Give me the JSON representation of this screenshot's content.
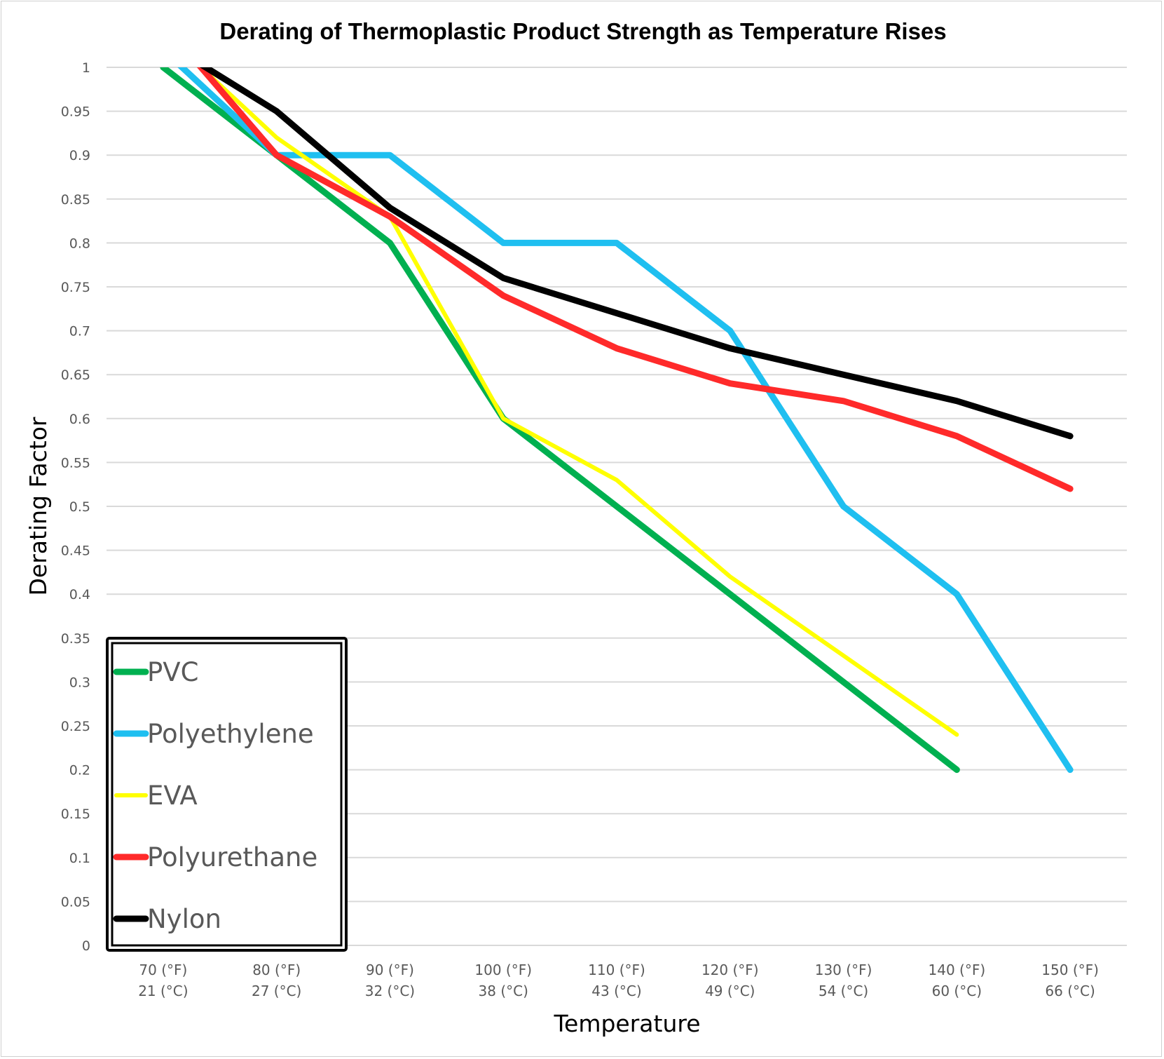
{
  "chart_data": {
    "type": "line",
    "title": "Derating of Thermoplastic Product Strength as Temperature Rises",
    "xlabel": "Temperature",
    "ylabel": "Derating Factor",
    "categories": [
      {
        "f": "70 (°F)",
        "c": "21 (°C)"
      },
      {
        "f": "80 (°F)",
        "c": "27 (°C)"
      },
      {
        "f": "90 (°F)",
        "c": "32 (°C)"
      },
      {
        "f": "100 (°F)",
        "c": "38 (°C)"
      },
      {
        "f": "110 (°F)",
        "c": "43 (°C)"
      },
      {
        "f": "120 (°F)",
        "c": "49 (°C)"
      },
      {
        "f": "130 (°F)",
        "c": "54 (°C)"
      },
      {
        "f": "140 (°F)",
        "c": "60 (°C)"
      },
      {
        "f": "150 (°F)",
        "c": "66 (°C)"
      }
    ],
    "ylim": [
      0,
      1
    ],
    "ystep": 0.05,
    "yticks": [
      "0",
      "0.05",
      "0.1",
      "0.15",
      "0.2",
      "0.25",
      "0.3",
      "0.35",
      "0.4",
      "0.45",
      "0.5",
      "0.55",
      "0.6",
      "0.65",
      "0.7",
      "0.75",
      "0.8",
      "0.85",
      "0.9",
      "0.95",
      "1"
    ],
    "grid": true,
    "legend_position": "bottom-left",
    "series": [
      {
        "name": "PVC",
        "color": "#00b050",
        "values": [
          1.0,
          0.9,
          0.8,
          0.6,
          0.5,
          0.4,
          0.3,
          0.2,
          null
        ]
      },
      {
        "name": "Polyethylene",
        "color": "#1fbff0",
        "values": [
          1.02,
          0.9,
          0.9,
          0.8,
          0.8,
          0.7,
          0.5,
          0.4,
          0.2
        ]
      },
      {
        "name": "EVA",
        "color": "#ffff00",
        "values": [
          1.04,
          0.92,
          0.83,
          0.6,
          0.53,
          0.42,
          0.33,
          0.24,
          null
        ]
      },
      {
        "name": "Polyurethane",
        "color": "#ff2a2a",
        "values": [
          1.05,
          0.9,
          0.83,
          0.74,
          0.68,
          0.64,
          0.62,
          0.58,
          0.52
        ]
      },
      {
        "name": "Nylon",
        "color": "#000000",
        "values": [
          1.03,
          0.95,
          0.84,
          0.76,
          0.72,
          0.68,
          0.65,
          0.62,
          0.58
        ]
      }
    ]
  }
}
